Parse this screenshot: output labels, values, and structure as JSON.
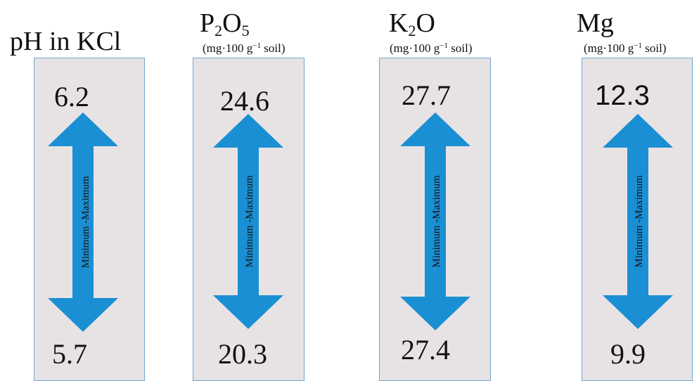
{
  "colors": {
    "panel_bg": "#e7e3e5",
    "panel_border": "#6fa6cf",
    "arrow": "#1b8fd3"
  },
  "arrow_label": "Minimum -Maximum",
  "panels": [
    {
      "title": "pH in KCl",
      "unit": "",
      "max": "6.2",
      "min": "5.7"
    },
    {
      "title_main": "P",
      "title_sub1": "2",
      "title_mid": "O",
      "title_sub2": "5",
      "unit_pre": "(mg·100 g",
      "unit_sup": "−1",
      "unit_post": " soil)",
      "max": "24.6",
      "min": "20.3"
    },
    {
      "title_main": "K",
      "title_sub1": "2",
      "title_mid": "O",
      "unit_pre": "(mg·100 g",
      "unit_sup": "−1",
      "unit_post": " soil)",
      "max": "27.7",
      "min": "27.4"
    },
    {
      "title_main": "Mg",
      "unit_pre": "(mg·100 g",
      "unit_sup": "−1",
      "unit_post": " soil)",
      "max": "12.3",
      "min": "9.9"
    }
  ]
}
